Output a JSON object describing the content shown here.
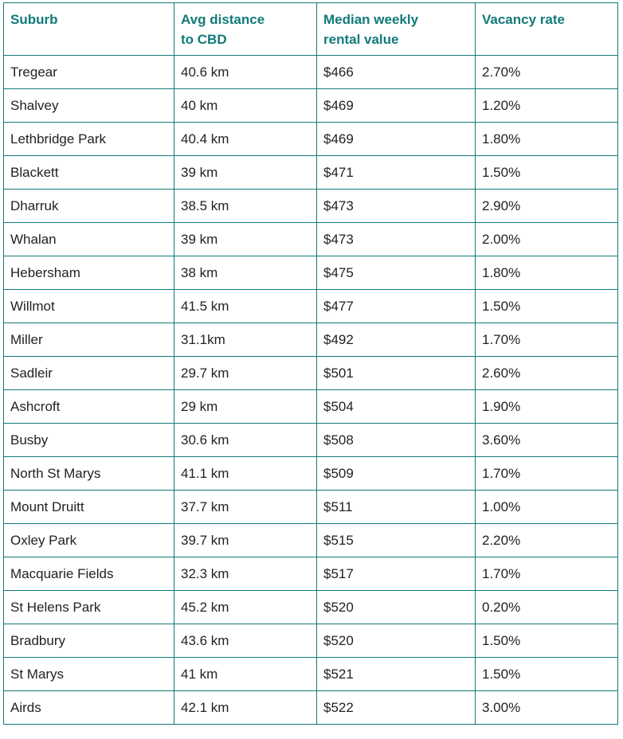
{
  "table": {
    "headers": [
      [
        "Suburb"
      ],
      [
        "Avg distance",
        "to CBD"
      ],
      [
        "Median weekly",
        "rental value"
      ],
      [
        "Vacancy rate"
      ]
    ],
    "rows": [
      [
        "Tregear",
        "40.6 km",
        "$466",
        "2.70%"
      ],
      [
        "Shalvey",
        "40 km",
        "$469",
        "1.20%"
      ],
      [
        "Lethbridge Park",
        "40.4 km",
        "$469",
        "1.80%"
      ],
      [
        "Blackett",
        "39 km",
        "$471",
        "1.50%"
      ],
      [
        "Dharruk",
        "38.5 km",
        "$473",
        "2.90%"
      ],
      [
        "Whalan",
        "39 km",
        "$473",
        "2.00%"
      ],
      [
        "Hebersham",
        "38 km",
        "$475",
        "1.80%"
      ],
      [
        "Willmot",
        "41.5 km",
        "$477",
        "1.50%"
      ],
      [
        "Miller",
        "31.1km",
        "$492",
        "1.70%"
      ],
      [
        "Sadleir",
        "29.7 km",
        "$501",
        "2.60%"
      ],
      [
        "Ashcroft",
        "29 km",
        "$504",
        "1.90%"
      ],
      [
        "Busby",
        "30.6 km",
        "$508",
        "3.60%"
      ],
      [
        "North St Marys",
        "41.1 km",
        "$509",
        "1.70%"
      ],
      [
        "Mount Druitt",
        "37.7 km",
        "$511",
        "1.00%"
      ],
      [
        "Oxley Park",
        "39.7 km",
        "$515",
        "2.20%"
      ],
      [
        "Macquarie Fields",
        "32.3 km",
        "$517",
        "1.70%"
      ],
      [
        "St Helens Park",
        "45.2 km",
        "$520",
        "0.20%"
      ],
      [
        "Bradbury",
        "43.6 km",
        "$520",
        "1.50%"
      ],
      [
        "St Marys",
        "41 km",
        "$521",
        "1.50%"
      ],
      [
        "Airds",
        "42.1 km",
        "$522",
        "3.00%"
      ]
    ]
  },
  "colors": {
    "header_text": "#127a79",
    "border": "#127a79",
    "cell_text": "#222222"
  }
}
